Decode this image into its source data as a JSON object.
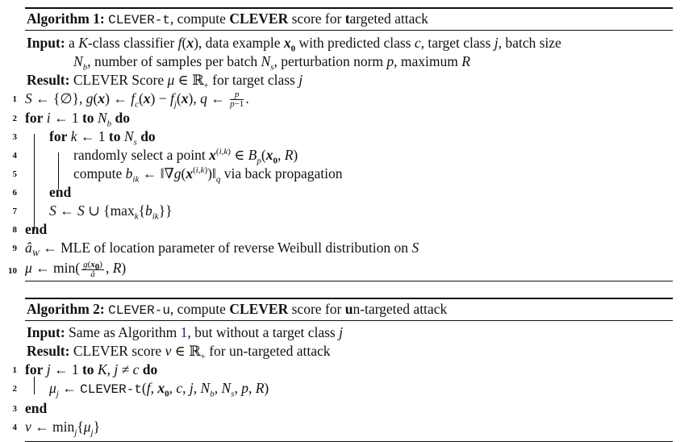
{
  "algo1": {
    "title_label": "Algorithm 1:",
    "title_code": "CLEVER-t",
    "title_pre": ", compute ",
    "title_bold": "CLEVER",
    "title_mid": " score for ",
    "title_t": "t",
    "title_post": "argeted attack",
    "input_label": "Input:",
    "input_text": "a K-class classifier f(x), data example x₀ with predicted class c, target class j, batch size",
    "input_cont": "N_b, number of samples per batch N_s, perturbation norm p, maximum R",
    "result_label": "Result:",
    "result_text": "CLEVER Score μ ∈ ℝ₊ for target class j",
    "lines": [
      {
        "n": "1",
        "text": "S ← {∅}, g(x) ← f_c(x) − f_j(x), q ← p/(p−1)."
      },
      {
        "n": "2",
        "kw1": "for",
        "text": " i ← 1 ",
        "kw2": "to",
        "text2": " N_b ",
        "kw3": "do"
      },
      {
        "n": "3",
        "kw1": "for",
        "text": " k ← 1 ",
        "kw2": "to",
        "text2": " N_s ",
        "kw3": "do"
      },
      {
        "n": "4",
        "text": "randomly select a point x^(i,k) ∈ B_p(x₀, R)"
      },
      {
        "n": "5",
        "text": "compute b_ik ← ‖∇g(x^(i,k))‖_q via back propagation"
      },
      {
        "n": "6",
        "kw1": "end"
      },
      {
        "n": "7",
        "text": "S ← S ∪ {max_k{b_ik}}"
      },
      {
        "n": "8",
        "kw1": "end"
      },
      {
        "n": "9",
        "text": "â_W ← MLE of location parameter of reverse Weibull distribution on S"
      },
      {
        "n": "10",
        "text": "μ ← min(g(x₀)/â, R)"
      }
    ]
  },
  "algo2": {
    "title_label": "Algorithm 2:",
    "title_code": "CLEVER-u",
    "title_pre": ", compute ",
    "title_bold": "CLEVER",
    "title_mid": " score for ",
    "title_u": "u",
    "title_post": "n-targeted attack",
    "input_label": "Input:",
    "input_text_pre": "Same as Algorithm ",
    "input_ref": "1",
    "input_text_post": ", but without a target class j",
    "result_label": "Result:",
    "result_text": "CLEVER score ν ∈ ℝ₊ for un-targeted attack",
    "lines": [
      {
        "n": "1",
        "kw1": "for",
        "text": " j ← 1 ",
        "kw2": "to",
        "text2": " K, j ≠ c ",
        "kw3": "do"
      },
      {
        "n": "2",
        "text": "μ_j ← CLEVER-t(f, x₀, c, j, N_b, N_s, p, R)"
      },
      {
        "n": "3",
        "kw1": "end"
      },
      {
        "n": "4",
        "text": "ν ← min_j{μ_j}"
      }
    ]
  }
}
